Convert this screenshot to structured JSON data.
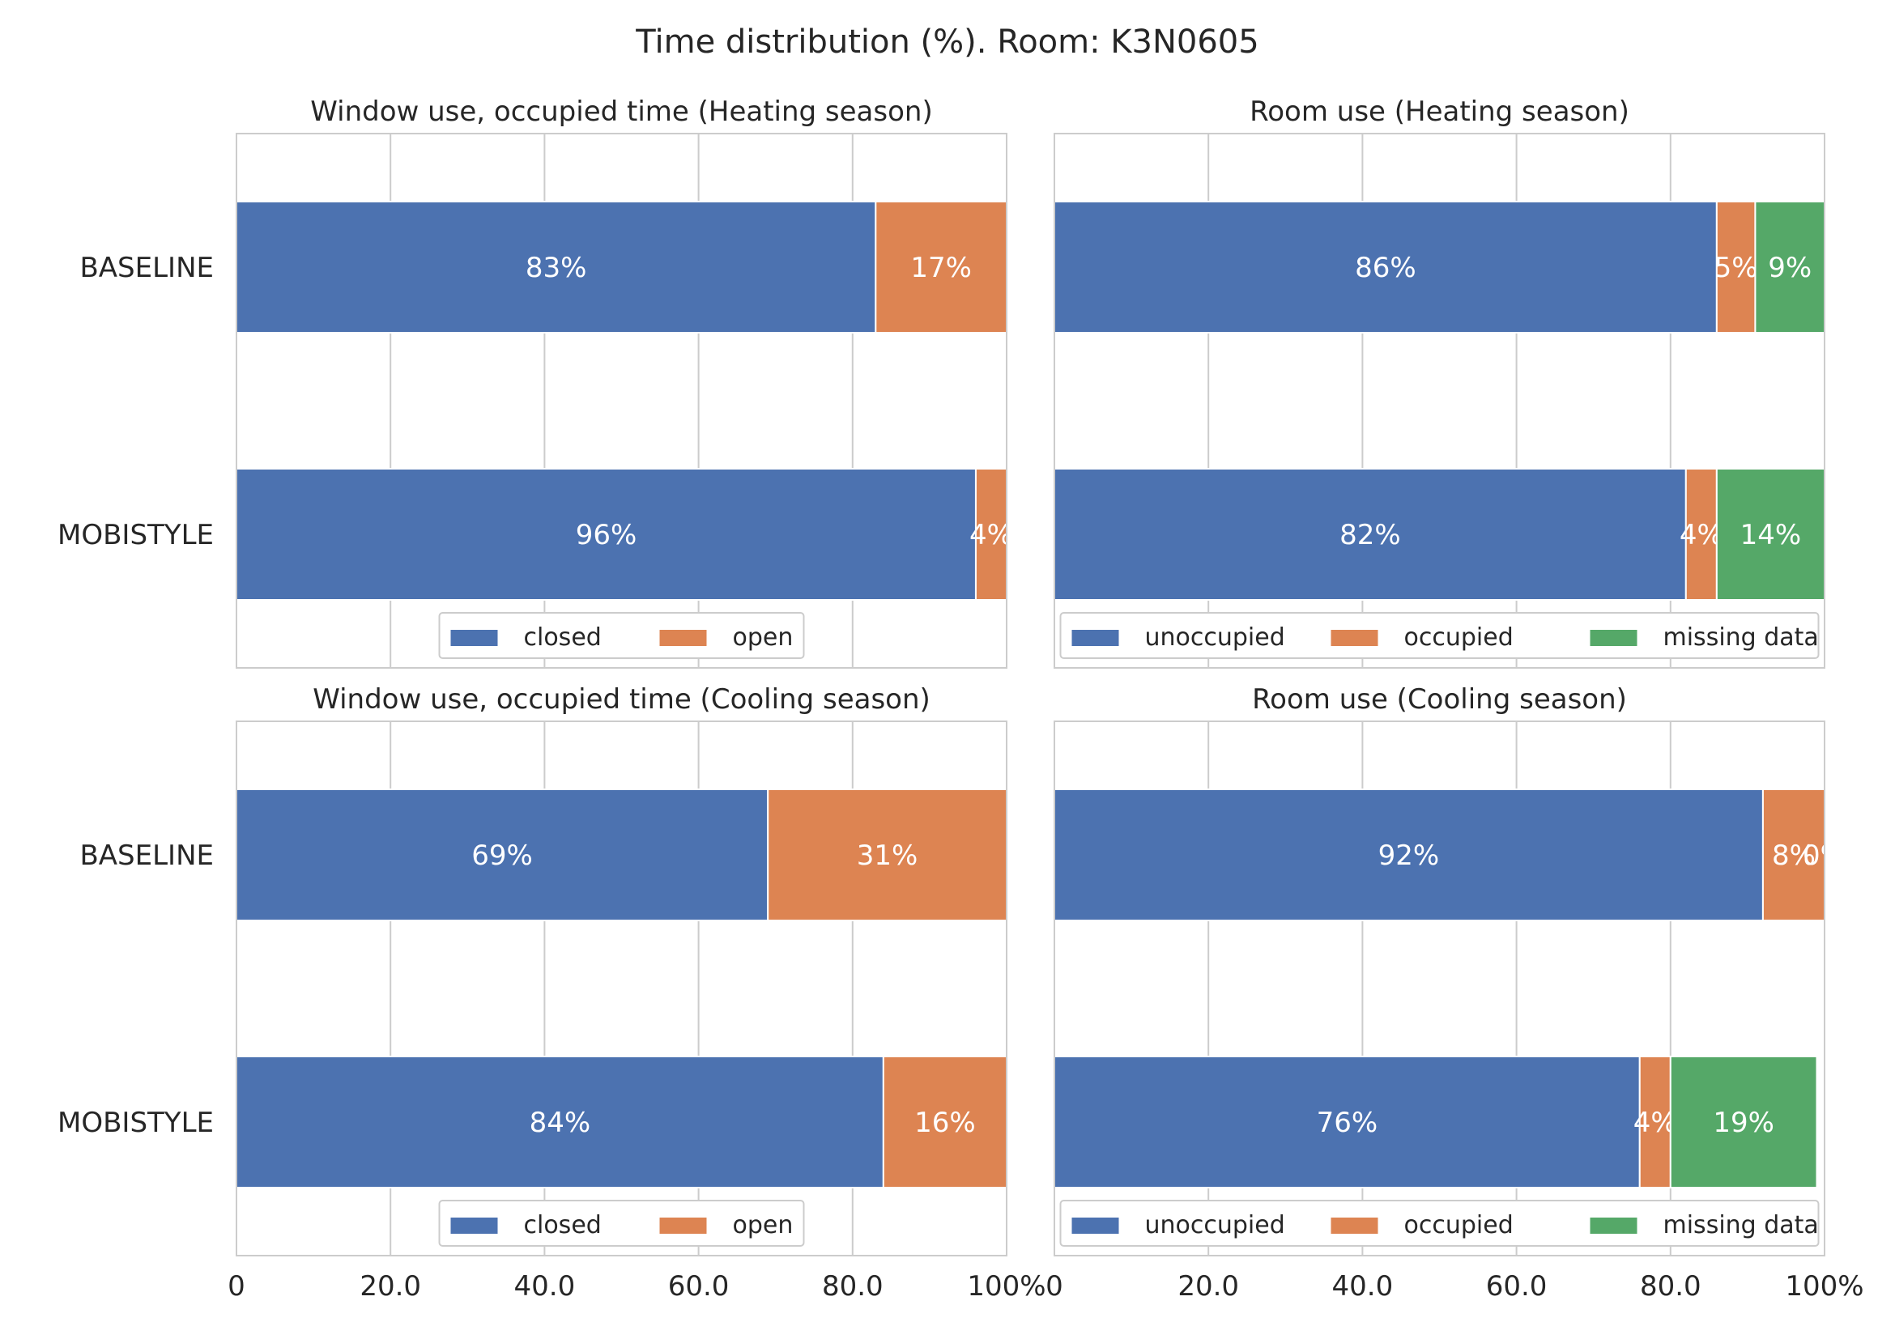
{
  "figure": {
    "title": "Time distribution (%). Room: K3N0605"
  },
  "colors": {
    "blue": "#4c72b0",
    "orange": "#dd8452",
    "green": "#55a868",
    "grid": "#cccccc",
    "frame": "#cccccc",
    "text": "#262626",
    "bar_label": "#ffffff"
  },
  "x_ticks": [
    "0",
    "20.0",
    "40.0",
    "60.0",
    "80.0",
    "100%"
  ],
  "chart_data": [
    {
      "type": "bar",
      "orientation": "horizontal",
      "stacked": true,
      "title": "Window use, occupied time (Heating season)",
      "categories": [
        "BASELINE",
        "MOBISTYLE"
      ],
      "series": [
        {
          "name": "closed",
          "color": "#4c72b0",
          "values": [
            83,
            96
          ],
          "labels": [
            "83%",
            "96%"
          ]
        },
        {
          "name": "open",
          "color": "#dd8452",
          "values": [
            17,
            4
          ],
          "labels": [
            "17%",
            "4%"
          ]
        }
      ],
      "xlim": [
        0,
        100
      ],
      "grid": true,
      "legend": "lower center"
    },
    {
      "type": "bar",
      "orientation": "horizontal",
      "stacked": true,
      "title": "Room use (Heating season)",
      "categories": [
        "BASELINE",
        "MOBISTYLE"
      ],
      "series": [
        {
          "name": "unoccupied",
          "color": "#4c72b0",
          "values": [
            86,
            82
          ],
          "labels": [
            "86%",
            "82%"
          ]
        },
        {
          "name": "occupied",
          "color": "#dd8452",
          "values": [
            5,
            4
          ],
          "labels": [
            "5%",
            "4%"
          ]
        },
        {
          "name": "missing data",
          "color": "#55a868",
          "values": [
            9,
            14
          ],
          "labels": [
            "9%",
            "14%"
          ]
        }
      ],
      "xlim": [
        0,
        100
      ],
      "grid": true,
      "legend": "lower center"
    },
    {
      "type": "bar",
      "orientation": "horizontal",
      "stacked": true,
      "title": "Window use, occupied time (Cooling season)",
      "categories": [
        "BASELINE",
        "MOBISTYLE"
      ],
      "series": [
        {
          "name": "closed",
          "color": "#4c72b0",
          "values": [
            69,
            84
          ],
          "labels": [
            "69%",
            "84%"
          ]
        },
        {
          "name": "open",
          "color": "#dd8452",
          "values": [
            31,
            16
          ],
          "labels": [
            "31%",
            "16%"
          ]
        }
      ],
      "xlim": [
        0,
        100
      ],
      "grid": true,
      "legend": "lower center"
    },
    {
      "type": "bar",
      "orientation": "horizontal",
      "stacked": true,
      "title": "Room use (Cooling season)",
      "categories": [
        "BASELINE",
        "MOBISTYLE"
      ],
      "series": [
        {
          "name": "unoccupied",
          "color": "#4c72b0",
          "values": [
            92,
            76
          ],
          "labels": [
            "92%",
            "76%"
          ]
        },
        {
          "name": "occupied",
          "color": "#dd8452",
          "values": [
            8,
            4
          ],
          "labels": [
            "8%",
            "4%"
          ]
        },
        {
          "name": "missing data",
          "color": "#55a868",
          "values": [
            0,
            19
          ],
          "labels": [
            "0%",
            "19%"
          ]
        }
      ],
      "xlim": [
        0,
        100
      ],
      "grid": true,
      "legend": "lower center"
    }
  ]
}
